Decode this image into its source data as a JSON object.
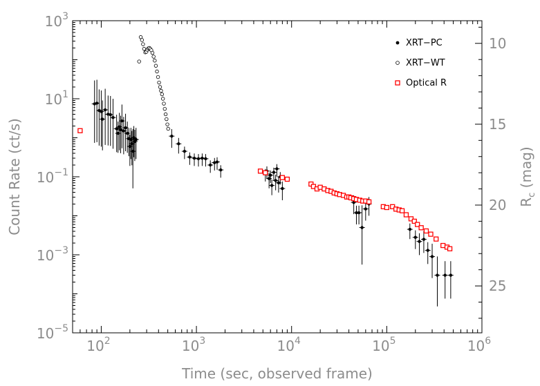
{
  "chart_data": {
    "type": "scatter",
    "xlabel": "Time  (sec, observed frame)",
    "ylabel": "Count Rate (ct/s)",
    "y2label": "R_c (mag)",
    "xscale": "log",
    "yscale": "log",
    "xlim": [
      50,
      1000000
    ],
    "ylim": [
      1e-05,
      1000
    ],
    "y2lim": [
      8.6,
      27.9
    ],
    "x_ticks": [
      {
        "value": 100,
        "base": "10",
        "exp": "2"
      },
      {
        "value": 1000,
        "base": "10",
        "exp": "3"
      },
      {
        "value": 10000,
        "base": "10",
        "exp": "4"
      },
      {
        "value": 100000,
        "base": "10",
        "exp": "5"
      },
      {
        "value": 1000000,
        "base": "10",
        "exp": "6"
      }
    ],
    "y_ticks": [
      {
        "value": 1e-05,
        "base": "10",
        "exp": "−5"
      },
      {
        "value": 0.001,
        "base": "10",
        "exp": "−3"
      },
      {
        "value": 0.1,
        "base": "10",
        "exp": "−1"
      },
      {
        "value": 10,
        "base": "10",
        "exp": "1"
      },
      {
        "value": 1000,
        "base": "10",
        "exp": "3"
      }
    ],
    "y2_ticks": [
      {
        "value": 10,
        "label": "10"
      },
      {
        "value": 15,
        "label": "15"
      },
      {
        "value": 20,
        "label": "20"
      },
      {
        "value": 25,
        "label": "25"
      }
    ],
    "legend": {
      "position": "top-right"
    },
    "series": [
      {
        "name": "XRT−PC",
        "marker": "filled-circle",
        "color": "#000000",
        "points": [
          [
            85,
            7.4,
            1.0
          ],
          [
            90,
            7.7,
            1.0
          ],
          [
            95,
            5.0,
            0.9
          ],
          [
            100,
            4.7,
            0.9
          ],
          [
            103,
            3.0,
            0.8
          ],
          [
            110,
            5.2,
            0.9
          ],
          [
            118,
            4.0,
            0.8
          ],
          [
            125,
            3.9,
            0.8
          ],
          [
            133,
            3.3,
            0.8
          ],
          [
            145,
            1.7,
            0.6
          ],
          [
            150,
            1.3,
            0.5
          ],
          [
            155,
            1.9,
            0.6
          ],
          [
            160,
            1.6,
            0.6
          ],
          [
            165,
            2.7,
            0.7
          ],
          [
            172,
            1.5,
            0.6
          ],
          [
            180,
            1.8,
            0.6
          ],
          [
            188,
            1.3,
            0.5
          ],
          [
            195,
            0.95,
            0.45
          ],
          [
            200,
            0.6,
            0.5
          ],
          [
            205,
            0.9,
            0.5
          ],
          [
            210,
            0.7,
            0.55
          ],
          [
            215,
            0.45,
            0.95
          ],
          [
            220,
            1.0,
            0.5
          ],
          [
            225,
            0.8,
            0.5
          ],
          [
            232,
            0.9,
            0.5
          ],
          [
            550,
            1.1,
            0.3
          ],
          [
            650,
            0.7,
            0.25
          ],
          [
            750,
            0.45,
            0.2
          ],
          [
            850,
            0.32,
            0.2
          ],
          [
            950,
            0.3,
            0.2
          ],
          [
            1050,
            0.29,
            0.2
          ],
          [
            1150,
            0.3,
            0.2
          ],
          [
            1250,
            0.29,
            0.2
          ],
          [
            1400,
            0.2,
            0.2
          ],
          [
            1550,
            0.23,
            0.2
          ],
          [
            1650,
            0.24,
            0.2
          ],
          [
            1800,
            0.15,
            0.2
          ],
          [
            5300,
            0.12,
            0.2
          ],
          [
            5500,
            0.14,
            0.2
          ],
          [
            5800,
            0.09,
            0.25
          ],
          [
            6000,
            0.11,
            0.2
          ],
          [
            6200,
            0.06,
            0.25
          ],
          [
            6500,
            0.13,
            0.2
          ],
          [
            6800,
            0.08,
            0.25
          ],
          [
            7000,
            0.16,
            0.2
          ],
          [
            7300,
            0.07,
            0.25
          ],
          [
            7600,
            0.1,
            0.2
          ],
          [
            8000,
            0.05,
            0.3
          ],
          [
            45000,
            0.022,
            0.3
          ],
          [
            48000,
            0.012,
            0.3
          ],
          [
            51000,
            0.012,
            0.3
          ],
          [
            55000,
            0.005,
            0.95
          ],
          [
            60000,
            0.015,
            0.3
          ],
          [
            65000,
            0.02,
            0.3
          ],
          [
            175000,
            0.0045,
            0.25
          ],
          [
            200000,
            0.0028,
            0.3
          ],
          [
            220000,
            0.0022,
            0.35
          ],
          [
            245000,
            0.0025,
            0.35
          ],
          [
            270000,
            0.0013,
            0.35
          ],
          [
            300000,
            0.0009,
            0.55
          ],
          [
            340000,
            0.0003,
            0.8
          ],
          [
            410000,
            0.0003,
            0.6
          ],
          [
            470000,
            0.0003,
            0.6
          ]
        ]
      },
      {
        "name": "XRT−WT",
        "marker": "open-circle",
        "color": "#000000",
        "points": [
          [
            250,
            90
          ],
          [
            260,
            380
          ],
          [
            268,
            320
          ],
          [
            275,
            250
          ],
          [
            282,
            190
          ],
          [
            290,
            155
          ],
          [
            298,
            160
          ],
          [
            305,
            180
          ],
          [
            312,
            195
          ],
          [
            320,
            200
          ],
          [
            328,
            190
          ],
          [
            336,
            175
          ],
          [
            345,
            150
          ],
          [
            355,
            120
          ],
          [
            365,
            95
          ],
          [
            375,
            70
          ],
          [
            385,
            50
          ],
          [
            395,
            36
          ],
          [
            405,
            26
          ],
          [
            415,
            20
          ],
          [
            425,
            16
          ],
          [
            435,
            13
          ],
          [
            445,
            10
          ],
          [
            455,
            7.5
          ],
          [
            465,
            5.5
          ],
          [
            475,
            4.0
          ],
          [
            485,
            3.0
          ],
          [
            495,
            2.2
          ],
          [
            505,
            1.7
          ]
        ]
      },
      {
        "name": "Optical R",
        "marker": "open-square",
        "color": "#ff0000",
        "points": [
          [
            60,
            15.4
          ],
          [
            4700,
            17.9
          ],
          [
            5300,
            18.0
          ],
          [
            8000,
            18.3
          ],
          [
            9000,
            18.4
          ],
          [
            16000,
            18.7
          ],
          [
            17000,
            18.85
          ],
          [
            18500,
            19.0
          ],
          [
            20000,
            18.9
          ],
          [
            22000,
            19.0
          ],
          [
            24000,
            19.1
          ],
          [
            26000,
            19.15
          ],
          [
            28000,
            19.25
          ],
          [
            30000,
            19.3
          ],
          [
            32000,
            19.35
          ],
          [
            35000,
            19.4
          ],
          [
            38000,
            19.5
          ],
          [
            40000,
            19.5
          ],
          [
            42000,
            19.55
          ],
          [
            45000,
            19.6
          ],
          [
            48000,
            19.65
          ],
          [
            52000,
            19.7
          ],
          [
            56000,
            19.75
          ],
          [
            60000,
            19.75
          ],
          [
            65000,
            19.8
          ],
          [
            92000,
            20.1
          ],
          [
            100000,
            20.15
          ],
          [
            115000,
            20.1
          ],
          [
            125000,
            20.25
          ],
          [
            135000,
            20.3
          ],
          [
            145000,
            20.35
          ],
          [
            160000,
            20.6
          ],
          [
            180000,
            20.85
          ],
          [
            195000,
            21.0
          ],
          [
            210000,
            21.2
          ],
          [
            230000,
            21.4
          ],
          [
            260000,
            21.6
          ],
          [
            290000,
            21.8
          ],
          [
            330000,
            22.1
          ],
          [
            390000,
            22.5
          ],
          [
            430000,
            22.6
          ],
          [
            460000,
            22.7
          ]
        ]
      }
    ]
  }
}
